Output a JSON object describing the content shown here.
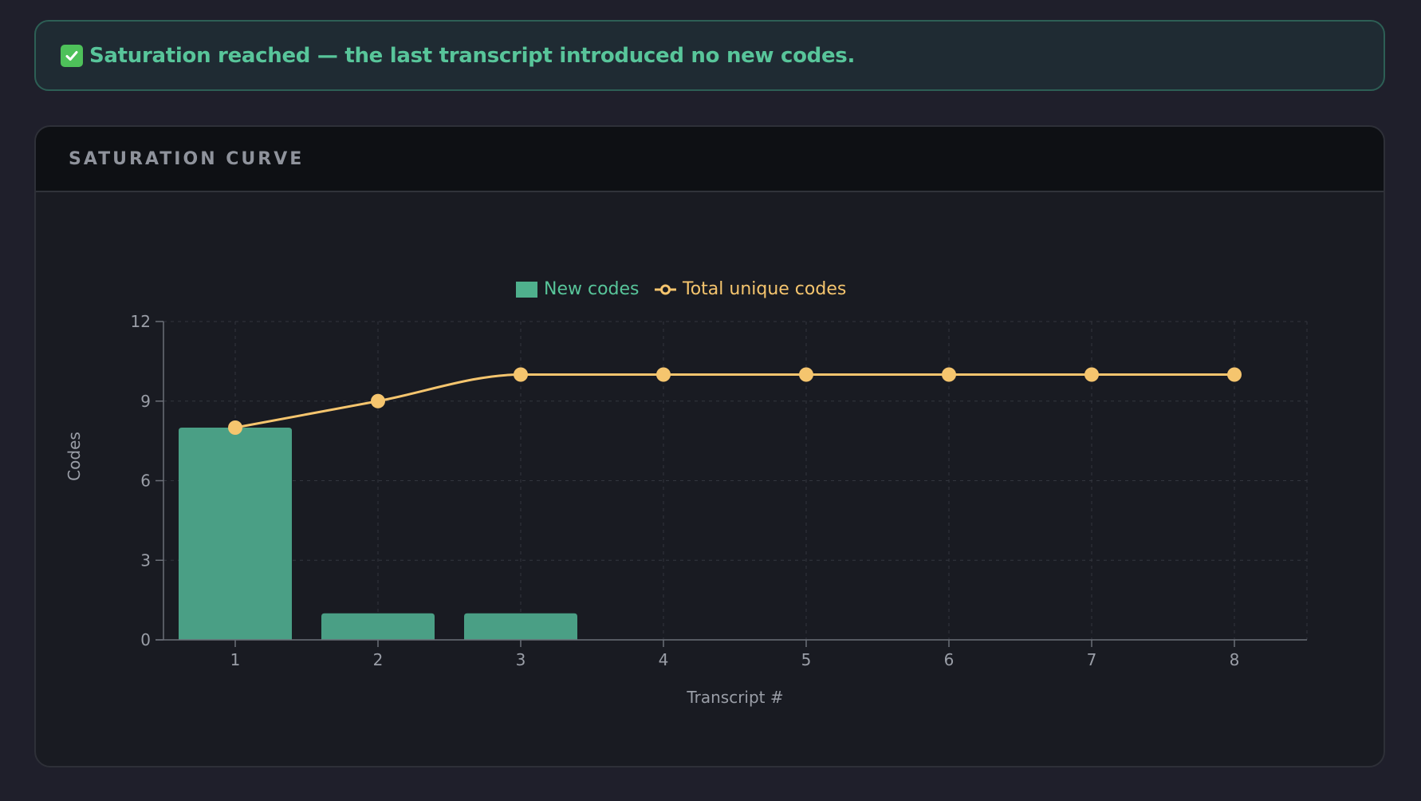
{
  "banner": {
    "icon": "check-box-icon",
    "message": "Saturation reached — the last transcript introduced no new codes."
  },
  "card": {
    "title": "SATURATION CURVE"
  },
  "colors": {
    "background": "#1f1f2b",
    "bar": "#4a9f85",
    "line": "#f5c56e",
    "banner_text": "#58c59a",
    "legend_bar_text": "#58c59a",
    "legend_line_text": "#f5c56e"
  },
  "chart_data": {
    "type": "bar",
    "x": [
      1,
      2,
      3,
      4,
      5,
      6,
      7,
      8
    ],
    "xlabel": "Transcript #",
    "ylabel": "Codes",
    "ylim": [
      0,
      12
    ],
    "yticks": [
      0,
      3,
      6,
      9,
      12
    ],
    "grid": true,
    "legend_position": "top-center",
    "series": [
      {
        "name": "New codes",
        "type": "bar",
        "values": [
          8,
          1,
          1,
          0,
          0,
          0,
          0,
          0
        ]
      },
      {
        "name": "Total unique codes",
        "type": "line",
        "values": [
          8,
          9,
          10,
          10,
          10,
          10,
          10,
          10
        ]
      }
    ]
  }
}
